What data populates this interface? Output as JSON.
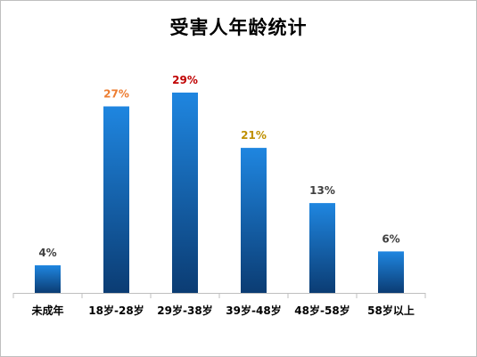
{
  "chart_data": {
    "type": "bar",
    "title": "受害人年龄统计",
    "xlabel": "",
    "ylabel": "",
    "categories": [
      "未成年",
      "18岁-28岁",
      "29岁-38岁",
      "39岁-48岁",
      "48岁-58岁",
      "58岁以上"
    ],
    "values": [
      4,
      27,
      29,
      21,
      13,
      6
    ],
    "data_labels": [
      "4%",
      "27%",
      "29%",
      "21%",
      "13%",
      "6%"
    ],
    "label_colors": [
      "#404040",
      "#ed7d31",
      "#c00000",
      "#bf9000",
      "#404040",
      "#404040"
    ],
    "ylim": [
      0,
      33
    ],
    "grid": false,
    "legend": "none",
    "bar_color_top": "#1f86e0",
    "bar_color_bottom": "#0b3c73"
  }
}
